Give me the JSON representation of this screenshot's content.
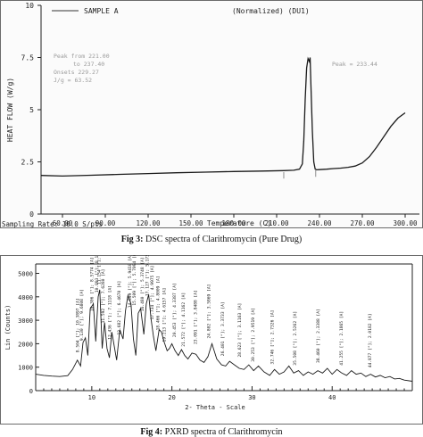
{
  "captions": {
    "fig3_label": "Fig 3:",
    "fig3_text": "DSC spectra of Clarithromycin (Pure Drug)",
    "fig4_label": "Fig 4:",
    "fig4_text": "PXRD spectra of Clarithromycin"
  },
  "chart_data": [
    {
      "type": "line",
      "header_left": "SAMPLE A",
      "header_right": "(Normalized)  (DU1)",
      "xlabel": "Temperature (C)",
      "ylabel": "HEAT FLOW   (W/g)",
      "xlim": [
        45,
        310
      ],
      "ylim": [
        0,
        10
      ],
      "x_ticks": [
        "60.00",
        "90.00",
        "120.00",
        "150.00",
        "180.00",
        "210.00",
        "240.00",
        "270.00",
        "300.00"
      ],
      "y_ticks": [
        "0",
        "2.5",
        "5",
        "7.5",
        "10"
      ],
      "annotations": [
        "Peak from 221.00",
        "to 237.40",
        "Onsets 229.27",
        "J/g = 63.52",
        "Peak = 233.44"
      ],
      "footer_text": "Sampling Rate:  10.0 S/pts",
      "series": [
        {
          "x": [
            45,
            60,
            80,
            100,
            120,
            140,
            160,
            180,
            200,
            215,
            222,
            226,
            228,
            229,
            230,
            231,
            232,
            233,
            233.44,
            234,
            235,
            236,
            237,
            238,
            240,
            245,
            250,
            255,
            260,
            265,
            270,
            275,
            280,
            285,
            290,
            295,
            300
          ],
          "y": [
            1.85,
            1.82,
            1.86,
            1.9,
            1.94,
            1.98,
            2.01,
            2.04,
            2.06,
            2.08,
            2.1,
            2.15,
            2.4,
            3.5,
            5.5,
            7.0,
            7.45,
            7.3,
            7.5,
            6.2,
            4.0,
            2.5,
            2.15,
            2.12,
            2.13,
            2.15,
            2.18,
            2.2,
            2.24,
            2.3,
            2.45,
            2.75,
            3.2,
            3.7,
            4.2,
            4.6,
            4.85
          ]
        }
      ],
      "grid": false
    },
    {
      "type": "line",
      "ylabel": "Lin (Counts)",
      "xlabel": "2- Theta - Scale",
      "xlim": [
        3,
        50
      ],
      "ylim": [
        0,
        5400
      ],
      "x_ticks": [
        "10",
        "20",
        "30",
        "40"
      ],
      "y_ticks": [
        "0",
        "1000",
        "2000",
        "3000",
        "4000",
        "5000"
      ],
      "series": [
        {
          "x": [
            3,
            4,
            5,
            6,
            7,
            7.6,
            8.2,
            8.6,
            8.9,
            9.2,
            9.5,
            9.8,
            10.2,
            10.5,
            10.8,
            11.0,
            11.3,
            11.6,
            11.9,
            12.2,
            12.5,
            12.8,
            13.1,
            13.5,
            13.9,
            14.2,
            14.5,
            14.9,
            15.2,
            15.5,
            15.8,
            16.1,
            16.5,
            16.8,
            17.1,
            17.4,
            17.7,
            18.0,
            18.4,
            18.7,
            19.0,
            19.4,
            19.7,
            20.0,
            20.4,
            20.8,
            21.2,
            21.6,
            22.0,
            22.5,
            23.0,
            23.5,
            24.0,
            24.5,
            25.0,
            25.6,
            26.2,
            26.7,
            27.2,
            27.8,
            28.4,
            29.0,
            29.6,
            30.2,
            30.8,
            31.5,
            32.2,
            32.8,
            33.4,
            34.0,
            34.6,
            35.2,
            35.8,
            36.4,
            37.0,
            37.6,
            38.2,
            38.8,
            39.4,
            40.0,
            40.6,
            41.2,
            41.8,
            42.4,
            43.0,
            43.6,
            44.2,
            44.8,
            45.4,
            46.0,
            46.6,
            47.2,
            47.8,
            48.4,
            49.0,
            50.0
          ],
          "y": [
            700,
            650,
            620,
            600,
            640,
            900,
            1300,
            1050,
            2050,
            2250,
            1500,
            3500,
            3700,
            2100,
            4000,
            4300,
            1800,
            2900,
            1800,
            1400,
            2500,
            1900,
            1300,
            2600,
            2200,
            3400,
            4050,
            3700,
            2200,
            1500,
            3300,
            3500,
            2400,
            3700,
            4100,
            3050,
            2300,
            1700,
            2600,
            2500,
            2100,
            1700,
            1800,
            2000,
            1700,
            1500,
            1750,
            1500,
            1350,
            1600,
            1550,
            1300,
            1200,
            1450,
            2000,
            1350,
            1100,
            1050,
            1250,
            1100,
            950,
            900,
            1100,
            850,
            1050,
            800,
            650,
            900,
            700,
            800,
            1050,
            750,
            850,
            650,
            800,
            700,
            850,
            750,
            950,
            700,
            900,
            750,
            650,
            850,
            700,
            750,
            600,
            700,
            580,
            650,
            550,
            600,
            500,
            520,
            450,
            400
          ]
        }
      ],
      "peak_labels": [
        {
          "x": 8.4,
          "y": 1550,
          "text": "8.504 [°]; 10.3897 [A]"
        },
        {
          "x": 8.9,
          "y": 2050,
          "text": "9.130 [°]; 9.6808 [A]"
        },
        {
          "x": 10.2,
          "y": 3300,
          "text": "10.306 [°]; 8.5774 [A]"
        },
        {
          "x": 10.8,
          "y": 4100,
          "text": "10.893 [°]; 8.1156 [A]"
        },
        {
          "x": 11.1,
          "y": 4450,
          "text": "11.134 [°]; 7.9403 [A]"
        },
        {
          "x": 11.6,
          "y": 2800,
          "text": "11.592 [°]; 7.6280 [A]"
        },
        {
          "x": 12.4,
          "y": 2100,
          "text": "12.436 [°]; 7.1118 [A]"
        },
        {
          "x": 13.6,
          "y": 2300,
          "text": "13.682 [°]; 6.4670 [A]"
        },
        {
          "x": 14.9,
          "y": 3450,
          "text": "14.899 [°]; 5.9410 [A]"
        },
        {
          "x": 15.5,
          "y": 3550,
          "text": "15.509 [°]; 5.7094 [A]"
        },
        {
          "x": 16.5,
          "y": 3300,
          "text": "16.480 [°]; 5.3748 [A]"
        },
        {
          "x": 17.1,
          "y": 3950,
          "text": "17.127 [°]; 5.1730 [A]"
        },
        {
          "x": 17.7,
          "y": 2950,
          "text": "17.734 [°]; 4.9975 [A]"
        },
        {
          "x": 18.4,
          "y": 2500,
          "text": "18.466 [°]; 4.8009 [A]"
        },
        {
          "x": 19.2,
          "y": 2000,
          "text": "19.213 [°]; 4.6157 [A]"
        },
        {
          "x": 20.5,
          "y": 2200,
          "text": "20.453 [°]; 4.3387 [A]"
        },
        {
          "x": 21.6,
          "y": 1800,
          "text": "21.572 [°]; 4.1162 [A]"
        },
        {
          "x": 23.1,
          "y": 1900,
          "text": "23.091 [°]; 3.8488 [A]"
        },
        {
          "x": 24.8,
          "y": 2150,
          "text": "24.802 [°]; 3.5869 [A]"
        },
        {
          "x": 26.5,
          "y": 1400,
          "text": "26.401 [°]; 3.3733 [A]"
        },
        {
          "x": 28.6,
          "y": 1350,
          "text": "28.623 [°]; 3.1163 [A]"
        },
        {
          "x": 30.3,
          "y": 1150,
          "text": "30.253 [°]; 2.9519 [A]"
        },
        {
          "x": 32.7,
          "y": 1050,
          "text": "32.746 [°]; 2.7326 [A]"
        },
        {
          "x": 35.5,
          "y": 1000,
          "text": "35.508 [°]; 2.5262 [A]"
        },
        {
          "x": 38.4,
          "y": 1100,
          "text": "38.460 [°]; 2.3388 [A]"
        },
        {
          "x": 41.3,
          "y": 1000,
          "text": "41.255 [°]; 2.1865 [A]"
        },
        {
          "x": 44.9,
          "y": 900,
          "text": "44.877 [°]; 2.0182 [A]"
        }
      ],
      "grid": false
    }
  ],
  "colors": {
    "border": "#6b6b6b",
    "dsc_bg": "#fbfbfb",
    "line": "#1a1a1a",
    "annotation": "#9a9a9a"
  }
}
